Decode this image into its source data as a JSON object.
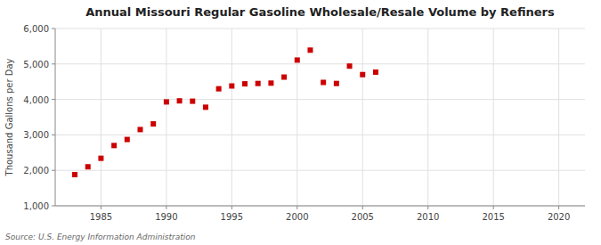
{
  "chart_data": {
    "type": "scatter",
    "title": "Annual Missouri Regular Gasoline Wholesale/Resale Volume by Refiners",
    "y_label": "Thousand Gallons per Day",
    "source": "Source: U.S. Energy Information Administration",
    "x": [
      1983,
      1984,
      1985,
      1986,
      1987,
      1988,
      1989,
      1990,
      1991,
      1992,
      1993,
      1994,
      1995,
      1996,
      1997,
      1998,
      1999,
      2000,
      2001,
      2002,
      2003,
      2004,
      2005,
      2006
    ],
    "values": [
      1880,
      2100,
      2340,
      2700,
      2870,
      3150,
      3310,
      3930,
      3960,
      3950,
      3780,
      4300,
      4380,
      4440,
      4450,
      4460,
      4630,
      5110,
      5390,
      4480,
      4450,
      4940,
      4700,
      4770
    ],
    "color": "#cc0000",
    "marker": "square",
    "xlim": [
      1981.5,
      2022
    ],
    "ylim": [
      1000,
      6000
    ],
    "xticks": [
      1985,
      1990,
      1995,
      2000,
      2005,
      2010,
      2015,
      2020
    ],
    "yticks": [
      {
        "value": 1000,
        "label": "1,000"
      },
      {
        "value": 2000,
        "label": "2,000"
      },
      {
        "value": 3000,
        "label": "3,000"
      },
      {
        "value": 4000,
        "label": "4,000"
      },
      {
        "value": 5000,
        "label": "5,000"
      },
      {
        "value": 6000,
        "label": "6,000"
      }
    ],
    "grid": true
  }
}
